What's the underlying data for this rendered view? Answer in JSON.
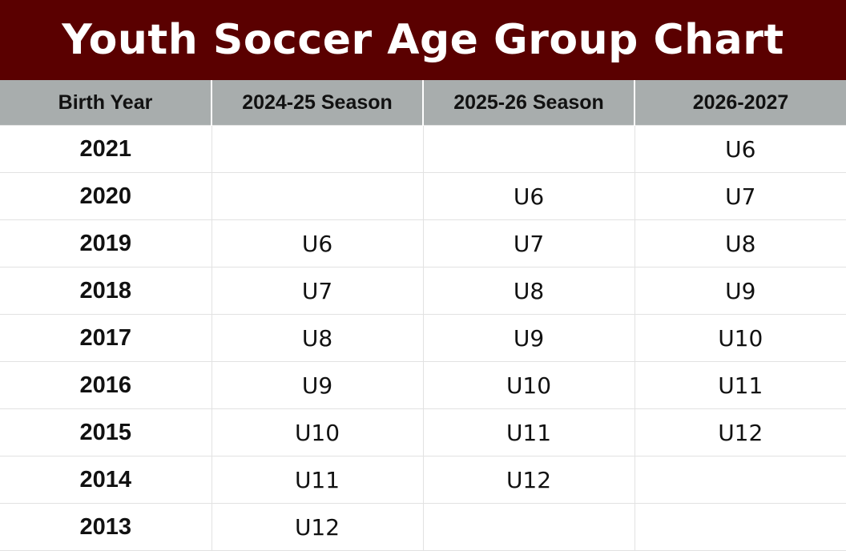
{
  "title": "Youth Soccer Age Group Chart",
  "headers": [
    "Birth Year",
    "2024-25 Season",
    "2025-26 Season",
    "2026-2027"
  ],
  "rows": [
    {
      "year": "2021",
      "s2425": "",
      "s2526": "",
      "s2627": "U6"
    },
    {
      "year": "2020",
      "s2425": "",
      "s2526": "U6",
      "s2627": "U7"
    },
    {
      "year": "2019",
      "s2425": "U6",
      "s2526": "U7",
      "s2627": "U8"
    },
    {
      "year": "2018",
      "s2425": "U7",
      "s2526": "U8",
      "s2627": "U9"
    },
    {
      "year": "2017",
      "s2425": "U8",
      "s2526": "U9",
      "s2627": "U10"
    },
    {
      "year": "2016",
      "s2425": "U9",
      "s2526": "U10",
      "s2627": "U11"
    },
    {
      "year": "2015",
      "s2425": "U10",
      "s2526": "U11",
      "s2627": "U12"
    },
    {
      "year": "2014",
      "s2425": "U11",
      "s2526": "U12",
      "s2627": ""
    },
    {
      "year": "2013",
      "s2425": "U12",
      "s2526": "",
      "s2627": ""
    }
  ],
  "colors": {
    "title_bg": "#5a0000",
    "header_bg": "#a8adad"
  }
}
